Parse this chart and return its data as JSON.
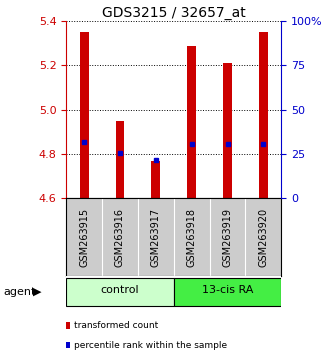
{
  "title": "GDS3215 / 32657_at",
  "samples": [
    "GSM263915",
    "GSM263916",
    "GSM263917",
    "GSM263918",
    "GSM263919",
    "GSM263920"
  ],
  "bar_values": [
    5.35,
    4.95,
    4.77,
    5.29,
    5.21,
    5.35
  ],
  "bar_bottom": 4.6,
  "percentile_values": [
    4.855,
    4.805,
    4.775,
    4.845,
    4.845,
    4.845
  ],
  "ylim_left": [
    4.6,
    5.4
  ],
  "ylim_right": [
    0,
    100
  ],
  "yticks_left": [
    4.6,
    4.8,
    5.0,
    5.2,
    5.4
  ],
  "yticks_right": [
    0,
    25,
    50,
    75,
    100
  ],
  "ytick_labels_right": [
    "0",
    "25",
    "50",
    "75",
    "100%"
  ],
  "bar_color": "#cc0000",
  "percentile_color": "#0000cc",
  "bar_width": 0.25,
  "groups": [
    {
      "label": "control",
      "samples": [
        0,
        1,
        2
      ],
      "color": "#ccffcc"
    },
    {
      "label": "13-cis RA",
      "samples": [
        3,
        4,
        5
      ],
      "color": "#44ee44"
    }
  ],
  "agent_label": "agent",
  "legend_items": [
    {
      "label": "transformed count",
      "color": "#cc0000"
    },
    {
      "label": "percentile rank within the sample",
      "color": "#0000cc"
    }
  ],
  "left_axis_color": "#cc0000",
  "right_axis_color": "#0000cc",
  "grid_color": "black",
  "sample_bg_color": "#cccccc",
  "fig_width": 3.31,
  "fig_height": 3.54,
  "dpi": 100
}
